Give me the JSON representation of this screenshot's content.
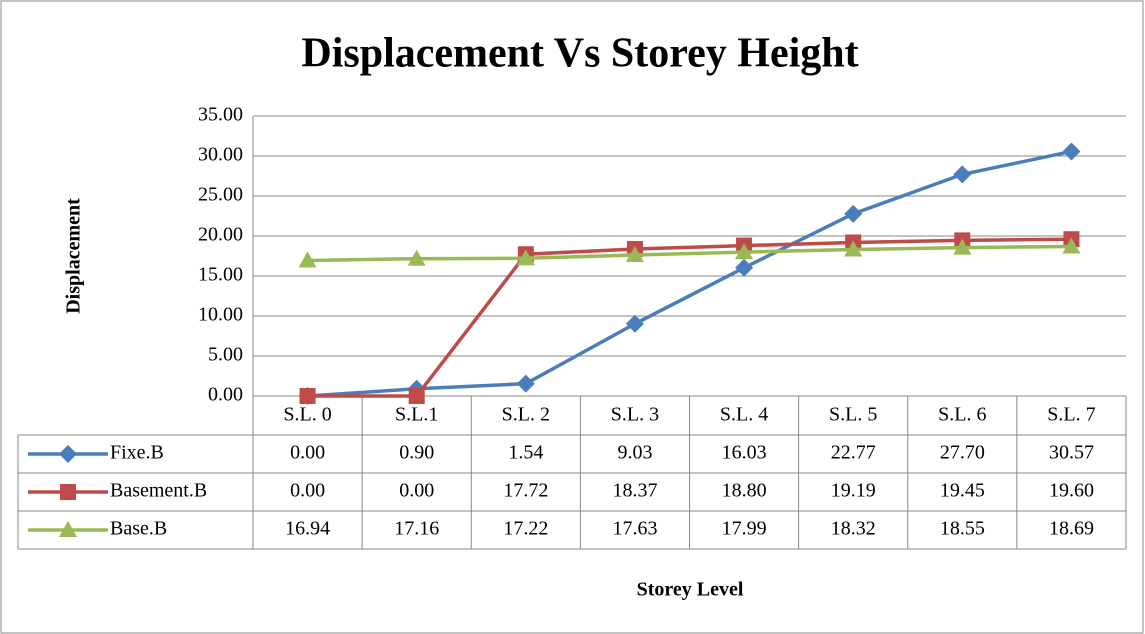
{
  "chart_data": {
    "type": "line",
    "title": "Displacement Vs Storey Height",
    "x_label": "Storey Level",
    "y_label": "Displacement",
    "categories": [
      "S.L. 0",
      "S.L.1",
      "S.L. 2",
      "S.L. 3",
      "S.L. 4",
      "S.L. 5",
      "S.L. 6",
      "S.L. 7"
    ],
    "series": [
      {
        "name": "Fixe.B",
        "color": "#4a7ebb",
        "marker": "diamond",
        "values": [
          0,
          0.9,
          1.54,
          9.03,
          16.03,
          22.77,
          27.7,
          30.57
        ],
        "value_labels": [
          "0.00",
          "0.90",
          "1.54",
          "9.03",
          "16.03",
          "22.77",
          "27.70",
          "30.57"
        ]
      },
      {
        "name": "Basement.B",
        "color": "#be4b48",
        "marker": "square",
        "values": [
          0,
          0,
          17.72,
          18.37,
          18.8,
          19.19,
          19.45,
          19.6
        ],
        "value_labels": [
          "0.00",
          "0.00",
          "17.72",
          "18.37",
          "18.80",
          "19.19",
          "19.45",
          "19.60"
        ]
      },
      {
        "name": "Base.B",
        "color": "#98b954",
        "marker": "triangle",
        "values": [
          16.94,
          17.16,
          17.22,
          17.63,
          17.99,
          18.32,
          18.55,
          18.69
        ],
        "value_labels": [
          "16.94",
          "17.16",
          "17.22",
          "17.63",
          "17.99",
          "18.32",
          "18.55",
          "18.69"
        ]
      }
    ],
    "ylim": [
      0,
      35
    ],
    "yticks": [
      {
        "value": 0,
        "label": "0.00"
      },
      {
        "value": 5,
        "label": "5.00"
      },
      {
        "value": 10,
        "label": "10.00"
      },
      {
        "value": 15,
        "label": "15.00"
      },
      {
        "value": 20,
        "label": "20.00"
      },
      {
        "value": 25,
        "label": "25.00"
      },
      {
        "value": 30,
        "label": "30.00"
      },
      {
        "value": 35,
        "label": "35.00"
      }
    ],
    "grid": true,
    "data_table": true
  }
}
